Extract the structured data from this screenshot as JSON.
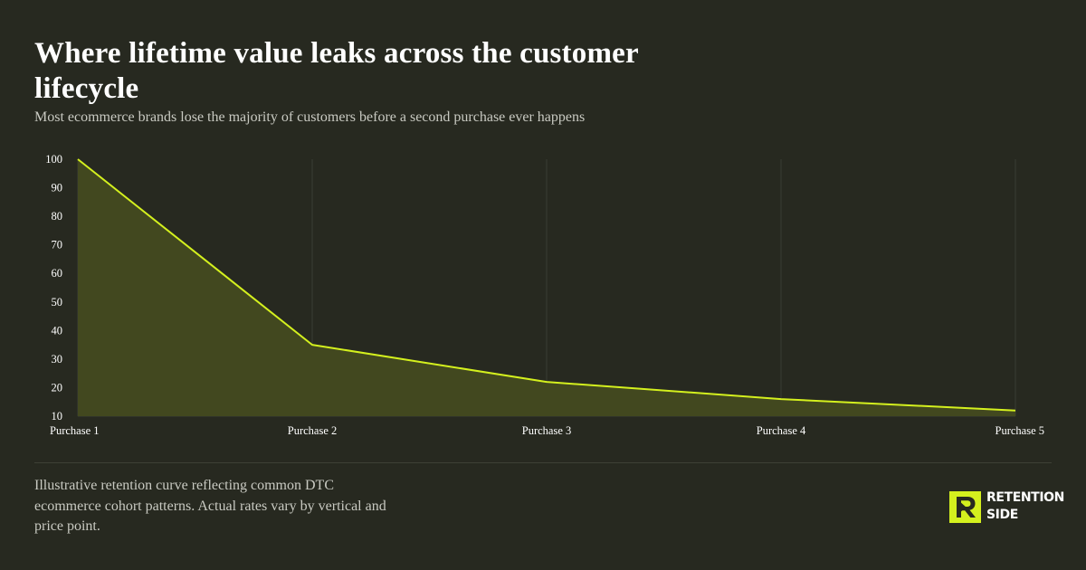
{
  "title": "Where lifetime value leaks across the customer lifecycle",
  "subtitle": "Most ecommerce brands lose the majority of customers before a second purchase ever happens",
  "footnote": "Illustrative retention curve reflecting common DTC ecommerce cohort patterns. Actual rates vary by vertical and price point.",
  "brand": {
    "name": "RETENTION SIDE",
    "logo_icon": "r-monogram-icon",
    "accent_color": "#d4f01e"
  },
  "colors": {
    "background": "#272920",
    "line": "#d4f01e",
    "area_fill": "#42481f",
    "gridline": "#3a3d33"
  },
  "chart_data": {
    "type": "area",
    "title": "Where lifetime value leaks across the customer lifecycle",
    "subtitle": "Most ecommerce brands lose the majority of customers before a second purchase ever happens",
    "categories": [
      "Purchase 1",
      "Purchase 2",
      "Purchase 3",
      "Purchase 4",
      "Purchase 5"
    ],
    "series": [
      {
        "values": [
          100,
          35,
          22,
          16,
          12
        ]
      }
    ],
    "yticks": [
      100,
      90,
      80,
      70,
      60,
      50,
      40,
      30,
      20,
      10
    ],
    "ylim": [
      10,
      100
    ],
    "xlabel": "",
    "ylabel": "",
    "grid": "vertical",
    "legend": "none"
  }
}
